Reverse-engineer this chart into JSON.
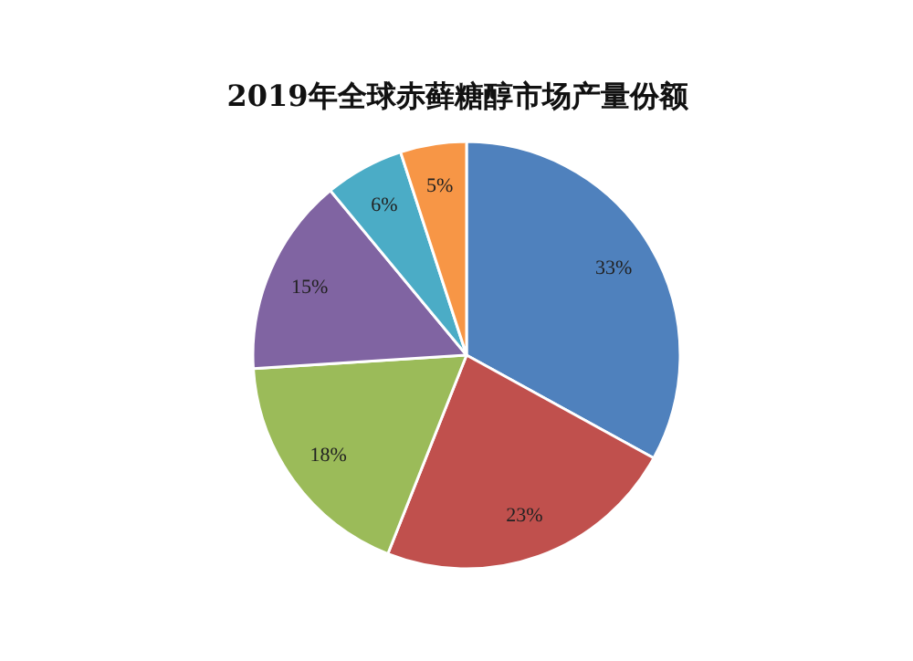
{
  "chart_data": {
    "type": "pie",
    "title": "2019年全球赤藓糖醇市场产量份额",
    "categories": [
      null,
      null,
      null,
      null,
      null,
      null
    ],
    "values": [
      33,
      23,
      18,
      15,
      6,
      5
    ],
    "value_labels": [
      "33%",
      "23%",
      "18%",
      "15%",
      "6%",
      "5%"
    ],
    "colors": [
      "#4f81bd",
      "#c0504d",
      "#9bbb59",
      "#8064a2",
      "#4bacc6",
      "#f79646"
    ]
  }
}
